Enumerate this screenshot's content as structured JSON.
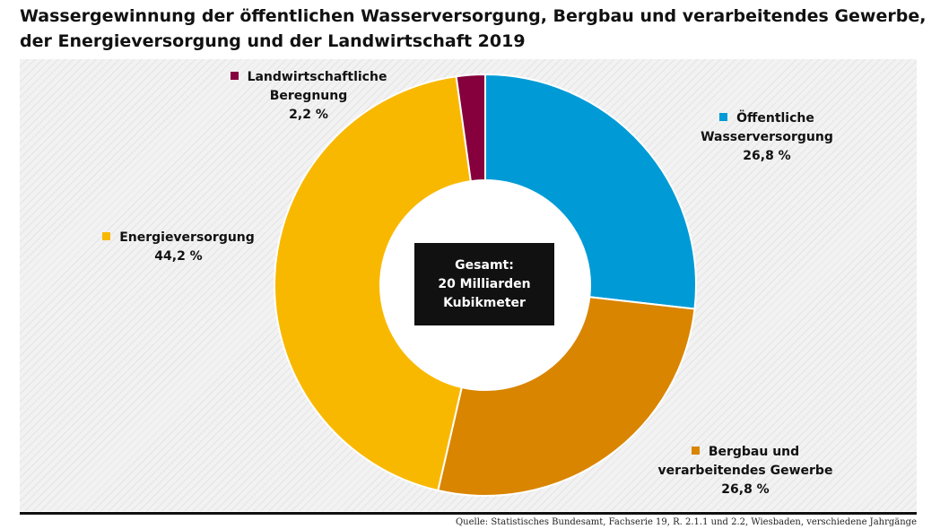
{
  "title_line1": "Wassergewinnung der öffentlichen Wasserversorgung, Bergbau und verarbeitendes Gewerbe,",
  "title_line2": "der Energieversorgung und der Landwirtschaft 2019",
  "center": {
    "line1": "Gesamt:",
    "line2": "20 Milliarden",
    "line3": "Kubikmeter"
  },
  "source": "Quelle: Statistisches Bundesamt, Fachserie 19, R. 2.1.1 und 2.2, Wiesbaden, verschiedene Jahrgänge",
  "chart_data": {
    "type": "pie",
    "donut": true,
    "title": "Wassergewinnung der öffentlichen Wasserversorgung, Bergbau und verarbeitendes Gewerbe, der Energieversorgung und der Landwirtschaft 2019",
    "slices": [
      {
        "line1": "Öffentliche",
        "line2": "Wasserversorgung",
        "pct_label": "26,8 %",
        "value": 26.8,
        "color": "#009bd6"
      },
      {
        "line1": "Bergbau und",
        "line2": "verarbeitendes Gewerbe",
        "pct_label": "26,8 %",
        "value": 26.8,
        "color": "#d98500"
      },
      {
        "line1": "Energieversorgung",
        "line2": "",
        "pct_label": "44,2 %",
        "value": 44.2,
        "color": "#f9b800"
      },
      {
        "line1": "Landwirtschaftliche",
        "line2": "Beregnung",
        "pct_label": "2,2 %",
        "value": 2.2,
        "color": "#85003c"
      }
    ]
  }
}
